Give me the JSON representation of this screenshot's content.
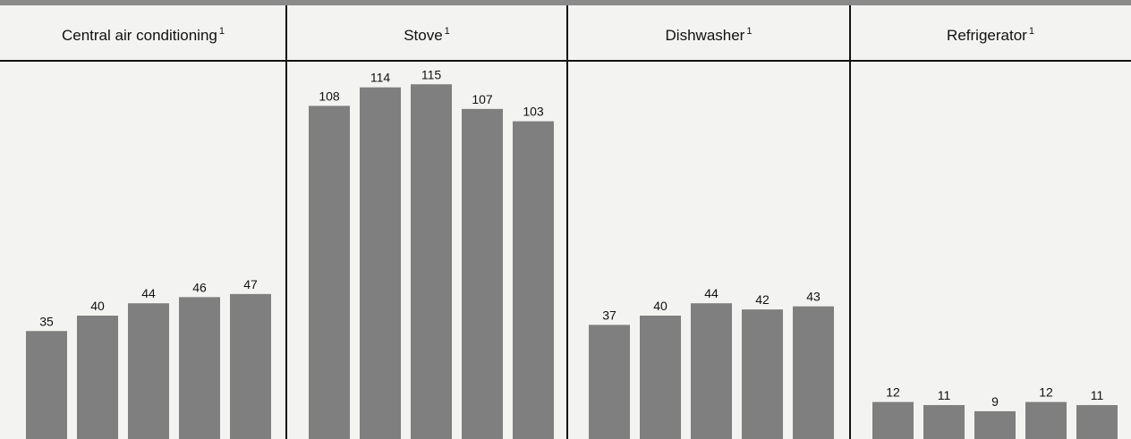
{
  "chart_data": [
    {
      "type": "bar",
      "title": "Central air conditioning",
      "footnote_mark": "1",
      "values": [
        35,
        40,
        44,
        46,
        47
      ],
      "data_labels": [
        "35",
        "40",
        "44",
        "46",
        "47"
      ]
    },
    {
      "type": "bar",
      "title": "Stove",
      "footnote_mark": "1",
      "values": [
        108,
        114,
        115,
        107,
        103
      ],
      "data_labels": [
        "108",
        "114",
        "115",
        "107",
        "103"
      ]
    },
    {
      "type": "bar",
      "title": "Dishwasher",
      "footnote_mark": "1",
      "values": [
        37,
        40,
        44,
        42,
        43
      ],
      "data_labels": [
        "37",
        "40",
        "44",
        "42",
        "43"
      ]
    },
    {
      "type": "bar",
      "title": "Refrigerator",
      "footnote_mark": "1",
      "values": [
        12,
        11,
        9,
        12,
        11
      ],
      "data_labels": [
        "12",
        "11",
        "9",
        "12",
        "11"
      ]
    }
  ],
  "colors": {
    "bar": "#7f7f7f",
    "background": "#f3f3f1",
    "rule": "#111111"
  }
}
